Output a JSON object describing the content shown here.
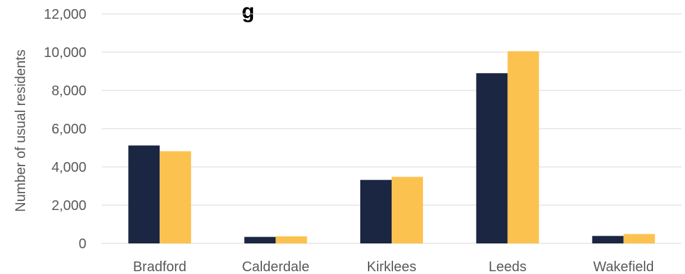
{
  "chart_data": {
    "type": "bar",
    "title_fragment": "g",
    "xlabel": "",
    "ylabel": "Number of  usual residents",
    "categories": [
      "Bradford",
      "Calderdale",
      "Kirklees",
      "Leeds",
      "Wakefield"
    ],
    "series": [
      {
        "color": "#1a2642",
        "values": [
          5120,
          340,
          3320,
          8900,
          390
        ]
      },
      {
        "color": "#fbc250",
        "values": [
          4820,
          370,
          3480,
          10050,
          490
        ]
      }
    ],
    "ylim": [
      0,
      12000
    ],
    "yticks": [
      0,
      2000,
      4000,
      6000,
      8000,
      10000,
      12000
    ],
    "ytick_labels": [
      "0",
      "2,000",
      "4,000",
      "6,000",
      "8,000",
      "10,000",
      "12,000"
    ],
    "grid": true,
    "legend": "none"
  }
}
